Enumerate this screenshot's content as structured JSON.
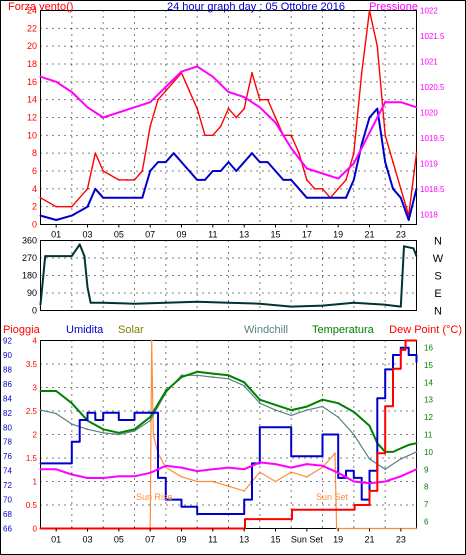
{
  "colors": {
    "background": "#ffffff",
    "frame": "#000000",
    "grid": "#000000",
    "red": "#ff0000",
    "blue": "#0000cc",
    "magenta": "#ff00ff",
    "darkgreen": "#003333",
    "green": "#008000",
    "olive": "#808000",
    "orange": "#ff8c3c",
    "teal": "#5a8080"
  },
  "chart_data": [
    {
      "type": "line",
      "title": "24 hour graph day : 05 Ottobre 2016",
      "left_label": "Forza vento()",
      "right_label": "Pressione",
      "x_range": [
        0,
        24
      ],
      "x_ticks": [
        "01",
        "03",
        "05",
        "07",
        "09",
        "11",
        "13",
        "15",
        "17",
        "19",
        "21",
        "23"
      ],
      "left_ticks": [
        "0",
        "2",
        "4",
        "6",
        "8",
        "10",
        "12",
        "14",
        "16",
        "18",
        "20",
        "22",
        "24"
      ],
      "right_ticks": [
        "1018",
        "1018.5",
        "1019",
        "1019.5",
        "1020",
        "1020.5",
        "1021",
        "1021.5",
        "1022"
      ],
      "left_ylim": [
        0,
        24
      ],
      "right_ylim": [
        1017.8,
        1022
      ],
      "series": [
        {
          "name": "Forza vento()",
          "axis": "left",
          "color": "#ff0000",
          "x": [
            0,
            1,
            2,
            3,
            3.5,
            4,
            5,
            5.5,
            6,
            6.5,
            7,
            7.5,
            8,
            8.5,
            9,
            9.5,
            10,
            10.5,
            11,
            11.5,
            12,
            12.5,
            13,
            13.5,
            14,
            14.5,
            15,
            15.5,
            16,
            16.5,
            17,
            17.5,
            18,
            18.5,
            19,
            19.5,
            20,
            20.5,
            21,
            21.5,
            22,
            22.5,
            23,
            23.5,
            24
          ],
          "values": [
            3,
            2,
            2,
            4,
            8,
            6,
            5,
            5,
            5,
            6,
            11,
            14,
            15,
            16,
            17,
            15,
            13,
            10,
            10,
            11,
            13,
            12,
            13,
            17,
            14,
            14,
            12,
            10,
            10,
            8,
            5,
            4,
            4,
            3,
            4,
            5,
            8,
            17,
            24,
            20,
            10,
            7,
            4,
            1,
            8
          ]
        },
        {
          "name": "",
          "axis": "left",
          "color": "#0000cc",
          "x": [
            0,
            1,
            2,
            3,
            3.5,
            4,
            5,
            5.5,
            6,
            6.5,
            7,
            7.5,
            8,
            8.5,
            9,
            9.5,
            10,
            10.5,
            11,
            11.5,
            12,
            12.5,
            13,
            13.5,
            14,
            14.5,
            15,
            15.5,
            16,
            16.5,
            17,
            17.5,
            18,
            18.5,
            19,
            19.5,
            20,
            20.5,
            21,
            21.5,
            22,
            22.5,
            23,
            23.5,
            24
          ],
          "values": [
            1,
            0.5,
            1,
            2,
            4,
            3,
            3,
            3,
            3,
            3,
            6,
            7,
            7,
            8,
            7,
            6,
            5,
            5,
            6,
            6,
            7,
            6,
            7,
            8,
            7,
            7,
            6,
            5,
            5,
            4,
            3,
            3,
            3,
            3,
            3,
            3,
            5,
            9,
            12,
            13,
            7,
            4,
            3,
            0.5,
            4
          ]
        },
        {
          "name": "Pressione",
          "axis": "right",
          "color": "#ff00ff",
          "x": [
            0,
            1,
            2,
            3,
            4,
            5,
            6,
            7,
            8,
            9,
            10,
            11,
            12,
            13,
            14,
            15,
            16,
            17,
            18,
            19,
            20,
            21,
            22,
            23,
            24
          ],
          "values": [
            1020.7,
            1020.6,
            1020.4,
            1020.1,
            1019.9,
            1020.0,
            1020.1,
            1020.2,
            1020.5,
            1020.8,
            1020.9,
            1020.7,
            1020.4,
            1020.3,
            1020.1,
            1019.8,
            1019.3,
            1018.9,
            1018.8,
            1018.7,
            1019.0,
            1019.6,
            1020.2,
            1020.2,
            1020.1
          ]
        }
      ]
    },
    {
      "type": "line",
      "x_range": [
        0,
        24
      ],
      "ylim": [
        0,
        360
      ],
      "left_ticks": [
        "0",
        "90",
        "180",
        "270",
        "360"
      ],
      "right_labels": [
        "N",
        "W",
        "S",
        "E",
        "N"
      ],
      "series": [
        {
          "name": "",
          "color": "#003333",
          "x": [
            0,
            0.3,
            1,
            2,
            2.5,
            2.8,
            3,
            3.2,
            4,
            6,
            8,
            10,
            12,
            14,
            16,
            18,
            20,
            22,
            23,
            23.2,
            23.8,
            24
          ],
          "values": [
            30,
            280,
            280,
            280,
            340,
            280,
            120,
            40,
            40,
            35,
            40,
            45,
            40,
            35,
            20,
            25,
            40,
            30,
            20,
            330,
            320,
            280
          ]
        }
      ]
    },
    {
      "type": "line",
      "labels": {
        "pioggia": "Pioggia",
        "umidita": "Umidita",
        "solar": "Solar",
        "windchill": "Windchill",
        "temperatura": "Temperatura",
        "dewpoint": "Dew Point (°C)"
      },
      "x_range": [
        0,
        24
      ],
      "x_ticks": [
        "01",
        "03",
        "05",
        "07",
        "09",
        "11",
        "13",
        "15",
        "Sun Set",
        "19",
        "21",
        "23"
      ],
      "left_ticks_umidita": [
        "66",
        "68",
        "70",
        "72",
        "74",
        "76",
        "78",
        "80",
        "82",
        "84",
        "86",
        "88",
        "90",
        "92"
      ],
      "left_ticks_pioggia": [
        "0",
        "0.5",
        "1",
        "1.5",
        "2",
        "2.5",
        "3",
        "3.5",
        "4"
      ],
      "right_ticks": [
        "6",
        "7",
        "8",
        "9",
        "10",
        "11",
        "12",
        "13",
        "14",
        "15",
        "16"
      ],
      "annotations": [
        "Sun Rise",
        "Sun Set"
      ],
      "ylim_pioggia": [
        0,
        4
      ],
      "ylim_umidita": [
        66,
        92
      ],
      "ylim_temp": [
        5.6,
        16.4
      ],
      "series": [
        {
          "name": "Pioggia",
          "color": "#ff0000",
          "x": [
            0,
            13,
            13.05,
            16,
            16.05,
            20,
            20.05,
            21,
            21.5,
            22,
            22.5,
            23,
            23.3,
            24
          ],
          "values": [
            0,
            0,
            0.2,
            0.2,
            0.4,
            0.4,
            0.5,
            0.8,
            1.6,
            2.6,
            3.4,
            3.8,
            4,
            4
          ]
        },
        {
          "name": "Umidita",
          "color": "#0000cc",
          "x": [
            0,
            1,
            1.5,
            2,
            2.5,
            3,
            3.5,
            4,
            5,
            5.5,
            6,
            7,
            7.5,
            8,
            9,
            10,
            11,
            12,
            12.5,
            13,
            13.5,
            14,
            15,
            16,
            17,
            18,
            19,
            19.5,
            20,
            20.5,
            21,
            21.5,
            22,
            22.5,
            23,
            23.5,
            24
          ],
          "values": [
            75,
            75,
            75,
            78,
            81,
            82,
            81,
            82,
            81,
            81,
            82,
            82,
            73,
            70,
            69,
            68,
            68,
            68,
            68,
            70,
            75,
            80,
            80,
            76,
            76,
            79,
            73,
            74,
            73,
            70,
            74,
            84,
            88,
            90,
            91,
            90,
            89
          ]
        },
        {
          "name": "Solar",
          "color": "#ff8c3c",
          "x": [
            0,
            7,
            7.1,
            7.2,
            7.5,
            8,
            9,
            10,
            11,
            12,
            13,
            14,
            15,
            16,
            17,
            18,
            18.8,
            18.9,
            19,
            24
          ],
          "values": [
            0,
            0,
            4,
            2,
            1.6,
            1.3,
            1.1,
            1,
            1,
            0.9,
            0.8,
            1.2,
            1,
            1.2,
            1.1,
            1.3,
            1.6,
            0,
            0,
            0
          ]
        },
        {
          "name": "Windchill",
          "color": "#5a8080",
          "x": [
            0,
            1,
            2,
            3,
            4,
            5,
            6,
            7,
            8,
            9,
            10,
            11,
            12,
            13,
            14,
            15,
            16,
            17,
            18,
            19,
            20,
            21,
            22,
            23,
            24
          ],
          "values": [
            12.4,
            12.2,
            11.6,
            11.3,
            11.1,
            11,
            11.2,
            11.8,
            13.4,
            14.4,
            14.4,
            14.3,
            14.2,
            13.8,
            12.8,
            12.4,
            12.1,
            12.4,
            12.6,
            12.0,
            11.0,
            9.6,
            9.0,
            9.6,
            10.0
          ]
        },
        {
          "name": "Temperatura",
          "color": "#008000",
          "x": [
            0,
            1,
            2,
            3,
            4,
            5,
            6,
            7,
            8,
            9,
            10,
            11,
            12,
            13,
            14,
            15,
            16,
            17,
            18,
            19,
            20,
            21,
            21.5,
            22,
            22.5,
            23,
            23.5,
            24
          ],
          "values": [
            13.5,
            13.5,
            12.8,
            11.8,
            11.3,
            11.1,
            11.3,
            12.0,
            13.5,
            14.3,
            14.6,
            14.5,
            14.4,
            14.0,
            13.0,
            12.7,
            12.4,
            12.6,
            13.0,
            12.8,
            12.3,
            11.5,
            10.5,
            10.0,
            10.0,
            10.2,
            10.4,
            10.5
          ]
        },
        {
          "name": "Dew Point (°C)",
          "color": "#ff00ff",
          "x": [
            0,
            1,
            2,
            3,
            4,
            5,
            6,
            7,
            8,
            9,
            10,
            11,
            12,
            13,
            14,
            15,
            16,
            17,
            18,
            19,
            20,
            21,
            22,
            23,
            24
          ],
          "values": [
            9.0,
            9.0,
            8.7,
            8.5,
            8.5,
            8.6,
            8.6,
            8.8,
            9.2,
            9.1,
            8.9,
            9.0,
            9.1,
            9.0,
            9.4,
            9.3,
            9.1,
            9.3,
            9.2,
            8.8,
            8.3,
            8.2,
            8.3,
            8.6,
            9.0
          ]
        }
      ]
    }
  ]
}
